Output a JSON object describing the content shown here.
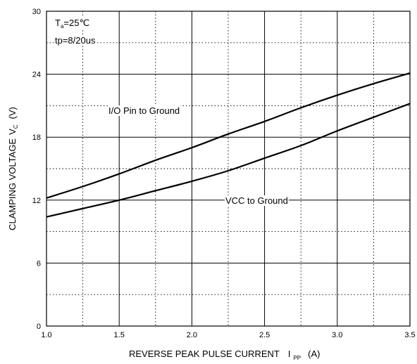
{
  "chart_data": {
    "type": "line",
    "xlabel": {
      "main": "REVERSE PEAK PULSE CURRENT",
      "sym": "I",
      "sub": "PP",
      "unit": "(A)"
    },
    "ylabel": {
      "main": "CLAMPING VOLTAGE",
      "sym": "V",
      "sub": "C",
      "unit": "(V)"
    },
    "xlim": [
      1.0,
      3.5
    ],
    "ylim": [
      0,
      30
    ],
    "x_ticks": [
      1.0,
      1.5,
      2.0,
      2.5,
      3.0,
      3.5
    ],
    "x_tick_labels": [
      "1.0",
      "1.5",
      "2.0",
      "2.5",
      "3.0",
      "3.5"
    ],
    "y_ticks": [
      0,
      6,
      12,
      18,
      24,
      30
    ],
    "y_tick_labels": [
      "0",
      "6",
      "12",
      "18",
      "24",
      "30"
    ],
    "x_minor_grid": [
      1.25,
      1.75,
      2.25,
      2.75,
      3.25
    ],
    "y_minor_grid": [
      3,
      9,
      15,
      21,
      27
    ],
    "grid": true,
    "annotations": {
      "temp": {
        "sym": "T",
        "sub": "a",
        "text": "=25℃"
      },
      "pulse": "tp=8/20us"
    },
    "series": [
      {
        "name": "I/O Pin to Ground",
        "x": [
          1.0,
          1.25,
          1.5,
          1.75,
          2.0,
          2.25,
          2.5,
          2.75,
          3.0,
          3.25,
          3.5
        ],
        "y": [
          12.2,
          13.3,
          14.5,
          15.8,
          17.0,
          18.3,
          19.5,
          20.8,
          22.0,
          23.1,
          24.1
        ]
      },
      {
        "name": "VCC to Ground",
        "x": [
          1.0,
          1.25,
          1.5,
          1.75,
          2.0,
          2.25,
          2.5,
          2.75,
          3.0,
          3.25,
          3.5
        ],
        "y": [
          10.4,
          11.2,
          12.0,
          12.9,
          13.8,
          14.8,
          16.0,
          17.2,
          18.6,
          19.9,
          21.2
        ]
      }
    ]
  }
}
